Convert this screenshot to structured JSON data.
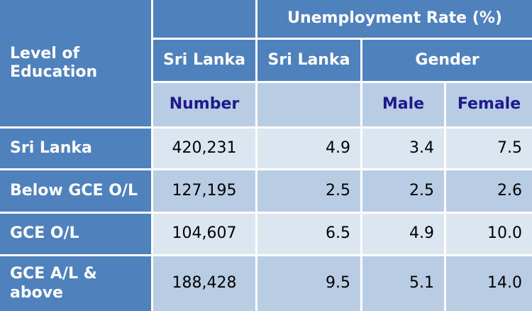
{
  "header": {
    "level_of_education": "Level of Education",
    "unemployment_rate": "Unemployment Rate (%)",
    "sri_lanka_number_col": "Sri Lanka",
    "sri_lanka_rate_col": "Sri Lanka",
    "gender": "Gender",
    "number": "Number",
    "male": "Male",
    "female": "Female"
  },
  "rows": [
    {
      "label": "Sri Lanka",
      "number": "420,231",
      "rate": "4.9",
      "male": "3.4",
      "female": "7.5"
    },
    {
      "label": "Below GCE O/L",
      "number": "127,195",
      "rate": "2.5",
      "male": "2.5",
      "female": "2.6"
    },
    {
      "label": "GCE O/L",
      "number": "104,607",
      "rate": "6.5",
      "male": "4.9",
      "female": "10.0"
    },
    {
      "label": "GCE A/L & above",
      "number": "188,428",
      "rate": "9.5",
      "male": "5.1",
      "female": "14.0"
    }
  ],
  "colors": {
    "header_bg": "#4f81bd",
    "subheader_bg": "#b8cce4",
    "subheader_text": "#1f1a8c",
    "row_light": "#dce6f1",
    "row_mid": "#b8cce4"
  }
}
